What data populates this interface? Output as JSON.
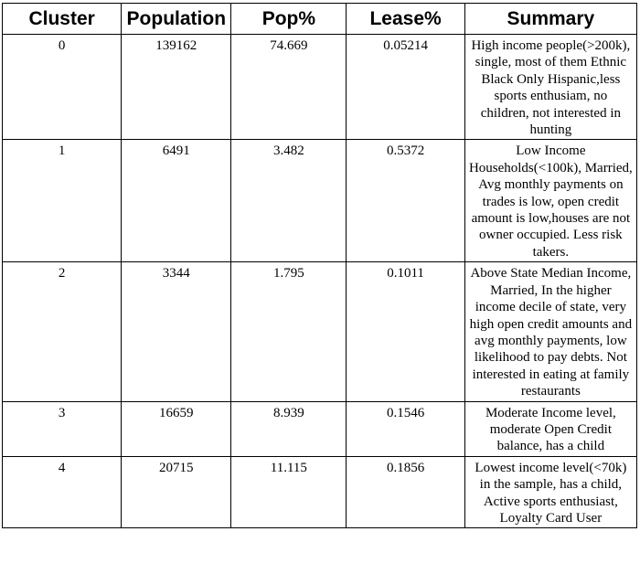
{
  "table": {
    "headers": [
      "Cluster",
      "Population",
      "Pop%",
      "Lease%",
      "Summary"
    ],
    "rows": [
      {
        "cluster": "0",
        "population": "139162",
        "pop_pct": "74.669",
        "lease_pct": "0.05214",
        "summary": "High income people(>200k), single, most of them Ethnic Black Only Hispanic,less sports enthusiam, no children, not interested in hunting"
      },
      {
        "cluster": "1",
        "population": "6491",
        "pop_pct": "3.482",
        "lease_pct": "0.5372",
        "summary": "Low Income Households(<100k), Married, Avg monthly payments on trades is low, open credit amount is low,houses are not owner occupied. Less risk takers."
      },
      {
        "cluster": "2",
        "population": "3344",
        "pop_pct": "1.795",
        "lease_pct": "0.1011",
        "summary": "Above State Median Income, Married, In the higher income decile of state, very high open credit amounts and avg monthly payments, low likelihood to pay debts. Not interested in eating at family restaurants"
      },
      {
        "cluster": "3",
        "population": "16659",
        "pop_pct": "8.939",
        "lease_pct": "0.1546",
        "summary": "Moderate Income level, moderate Open Credit balance, has a child"
      },
      {
        "cluster": "4",
        "population": "20715",
        "pop_pct": "11.115",
        "lease_pct": "0.1856",
        "summary": "Lowest income level(<70k) in the sample, has a child, Active sports enthusiast, Loyalty Card User"
      }
    ]
  }
}
